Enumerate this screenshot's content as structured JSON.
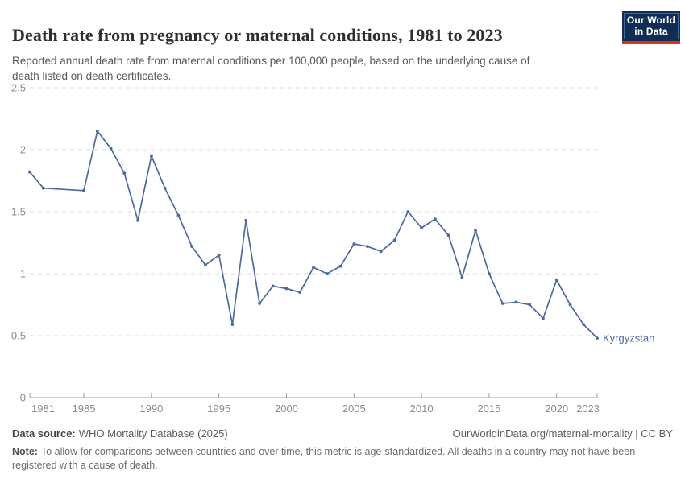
{
  "header": {
    "title": "Death rate from pregnancy or maternal conditions, 1981 to 2023",
    "subtitle": "Reported annual death rate from maternal conditions per 100,000 people, based on the underlying cause of death listed on death certificates.",
    "logo": {
      "line1": "Our World",
      "line2": "in Data",
      "bg_color": "#102d54",
      "bar_color": "#dc2f23"
    }
  },
  "chart_data": {
    "type": "line",
    "title": "Death rate from pregnancy or maternal conditions, 1981 to 2023",
    "xlabel": "",
    "ylabel": "",
    "xlim": [
      1981,
      2023
    ],
    "ylim": [
      0,
      2.5
    ],
    "x_ticks": [
      1981,
      1985,
      1990,
      1995,
      2000,
      2005,
      2010,
      2015,
      2020,
      2023
    ],
    "y_ticks": [
      0,
      0.5,
      1,
      1.5,
      2,
      2.5
    ],
    "grid": "horizontal-dashed",
    "legend_position": "end-of-line",
    "series": [
      {
        "name": "Kyrgyzstan",
        "color": "#4c6a9c",
        "points": [
          [
            1981,
            1.82
          ],
          [
            1982,
            1.69
          ],
          [
            1985,
            1.67
          ],
          [
            1986,
            2.15
          ],
          [
            1987,
            2.01
          ],
          [
            1988,
            1.81
          ],
          [
            1989,
            1.43
          ],
          [
            1990,
            1.95
          ],
          [
            1991,
            1.69
          ],
          [
            1992,
            1.47
          ],
          [
            1993,
            1.22
          ],
          [
            1994,
            1.07
          ],
          [
            1995,
            1.15
          ],
          [
            1996,
            0.59
          ],
          [
            1997,
            1.43
          ],
          [
            1998,
            0.76
          ],
          [
            1999,
            0.9
          ],
          [
            2000,
            0.88
          ],
          [
            2001,
            0.85
          ],
          [
            2002,
            1.05
          ],
          [
            2003,
            1.0
          ],
          [
            2004,
            1.06
          ],
          [
            2005,
            1.24
          ],
          [
            2006,
            1.22
          ],
          [
            2007,
            1.18
          ],
          [
            2008,
            1.27
          ],
          [
            2009,
            1.5
          ],
          [
            2010,
            1.37
          ],
          [
            2011,
            1.44
          ],
          [
            2012,
            1.31
          ],
          [
            2013,
            0.97
          ],
          [
            2014,
            1.35
          ],
          [
            2015,
            1.0
          ],
          [
            2016,
            0.76
          ],
          [
            2017,
            0.77
          ],
          [
            2018,
            0.75
          ],
          [
            2019,
            0.64
          ],
          [
            2020,
            0.95
          ],
          [
            2021,
            0.75
          ],
          [
            2022,
            0.59
          ],
          [
            2023,
            0.48
          ]
        ]
      }
    ]
  },
  "footer": {
    "source_label": "Data source:",
    "source_text": "WHO Mortality Database (2025)",
    "rights": "OurWorldinData.org/maternal-mortality | CC BY",
    "note_label": "Note:",
    "note_text": "To allow for comparisons between countries and over time, this metric is age-standardized. All deaths in a country may not have been registered with a cause of death."
  }
}
